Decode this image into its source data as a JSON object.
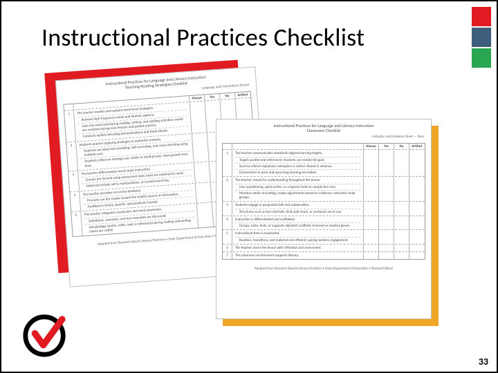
{
  "title": "Instructional Practices Checklist",
  "page_number": "33",
  "corner_colors": [
    "#e11b22",
    "#3e5e7d",
    "#2aa651"
  ],
  "shadows": {
    "left_color": "#e11b22",
    "right_color": "#f0a725"
  },
  "doc_left": {
    "header_line1": "Instructional Practices for Language and Literacy Instruction",
    "header_line2": "Teaching Reading Strategies Checklist",
    "subheader": "Language and Conventions Strand",
    "columns": [
      "Always",
      "Yes",
      "No",
      "Artifact"
    ],
    "rows": [
      {
        "n": "1",
        "main": "The teacher models and explains word-level strategies.",
        "subs": [
          "Reviews high-frequency words and familiar patterns.",
          "Uses the word wall during reading, writing, and spelling activities; words are revisited during mini-lessons and guided practice.",
          "Conducts explicit decoding demonstrations and think-alouds."
        ]
      },
      {
        "n": "2",
        "main": "Students practice applying strategies in authentic contexts.",
        "subs": [
          "Students are observed rereading, self-correcting, and cross-checking using multiple cues.",
          "Students reflect on strategy use; confer in small groups; chart growth over time."
        ]
      },
      {
        "n": "3",
        "main": "The teacher differentiates word-study instruction.",
        "subs": [
          "Groups are formed using assessment data; tasks are matched to need.",
          "Materials include sorts, manipulatives, or leveled word lists."
        ]
      },
      {
        "n": "4",
        "main": "The teacher provides corrective feedback.",
        "subs": [
          "Prompts cue the reader toward the helpful source of information.",
          "Feedback is timely, specific, and positively framed."
        ]
      },
      {
        "n": "5",
        "main": "The teacher integrates vocabulary and word awareness.",
        "subs": [
          "Definitions, examples, and non-examples are discussed.",
          "Morphology (prefix, suffix, root) is referenced during reading and writing; charts are visible."
        ]
      }
    ],
    "footer": "Adapted from Research-Based Literacy Practices • State Department of Education • Revised Edition"
  },
  "doc_right": {
    "header_line1": "Instructional Practices for Language and Literacy Instruction",
    "header_line2": "Classroom Checklist",
    "subheader": "Indicator and Evidence Sheet — Item",
    "columns": [
      "Always",
      "Yes",
      "No",
      "Artifact"
    ],
    "rows": [
      {
        "n": "1",
        "main": "The teacher communicates standards-aligned learning targets.",
        "subs": [
          "Targets posted and referenced; students can restate the goal.",
          "Success criteria explained; exemplars or rubrics shared in advance.",
          "Connections to prior and upcoming learning are stated."
        ]
      },
      {
        "n": "2",
        "main": "The teacher checks for understanding throughout the lesson.",
        "subs": [
          "Uses questioning, quick-writes, or response tools to sample the class.",
          "Monitors while circulating; makes adjustments based on evidence; reteaches small groups."
        ]
      },
      {
        "n": "3",
        "main": "Students engage in purposeful talk and collaboration.",
        "subs": [
          "Structures such as turn-and-talk, think-pair-share, or protocols are in use."
        ]
      },
      {
        "n": "4",
        "main": "Instruction is differentiated and scaffolded.",
        "subs": [
          "Groups, tasks, texts, or supports adjusted; scaffolds removed as mastery grows."
        ]
      },
      {
        "n": "5",
        "main": "Instructional time is maximized.",
        "subs": [
          "Routines, transitions, and materials are efficient; pacing sustains engagement."
        ]
      },
      {
        "n": "6",
        "main": "The teacher closes the lesson with reflection and assessment.",
        "subs": []
      },
      {
        "n": "7",
        "main": "The classroom environment supports literacy.",
        "subs": []
      }
    ],
    "footer": "Adapted from Research-Based Literacy Practices • State Department of Education • Revised Edition"
  }
}
